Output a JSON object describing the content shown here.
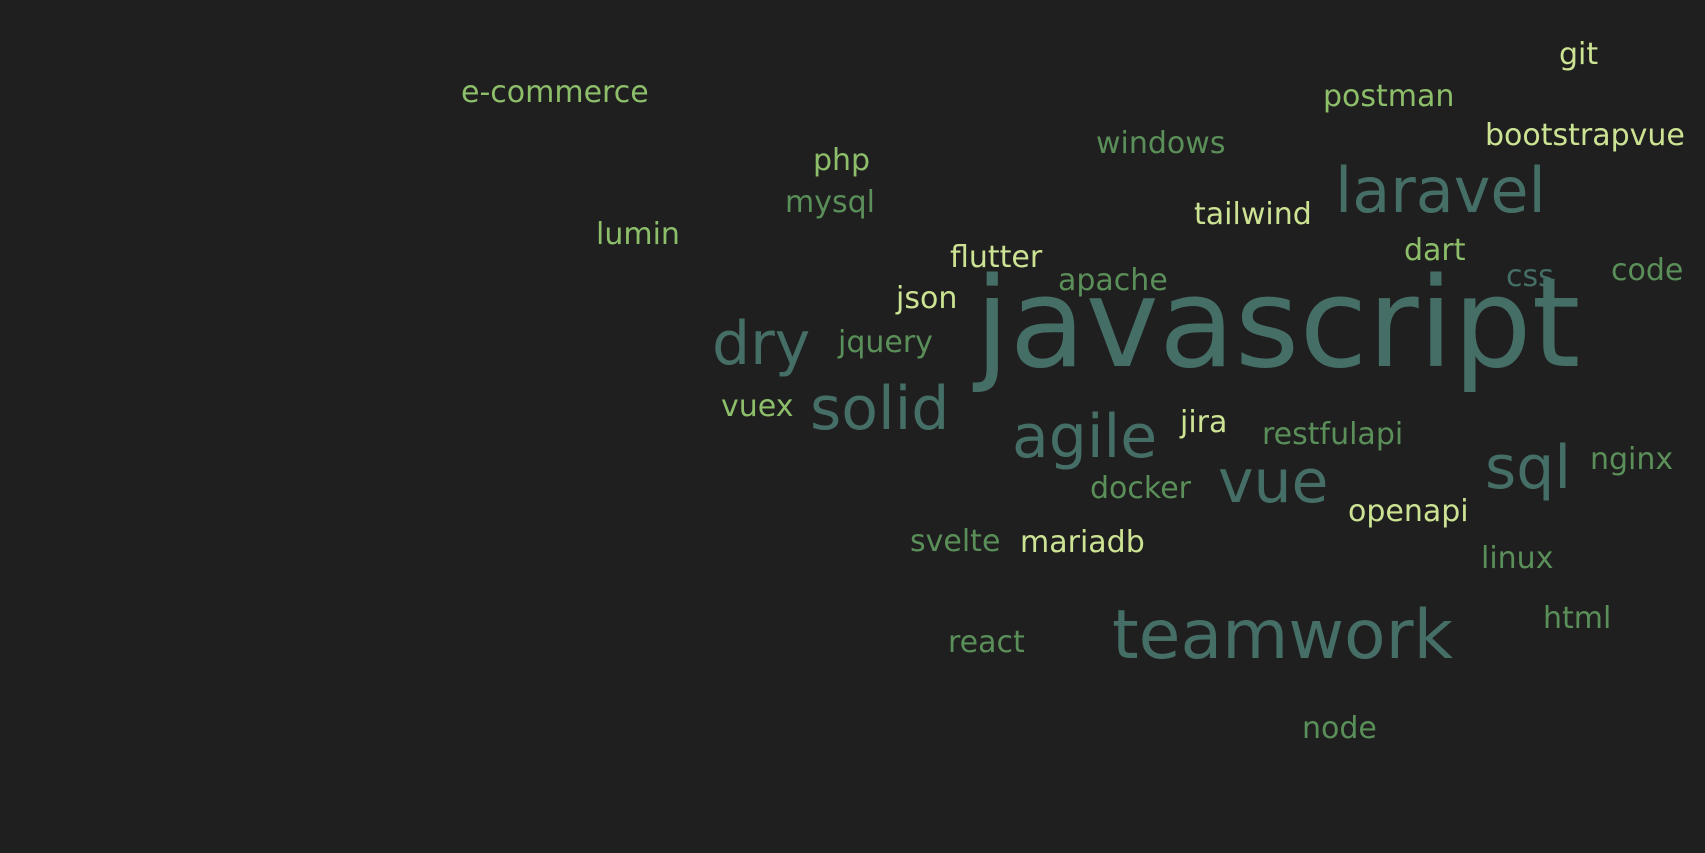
{
  "word_cloud": {
    "palette": {
      "c1": "#456f66",
      "c2": "#5a8f59",
      "c3": "#8dbe6a",
      "c4": "#cde394"
    },
    "words": [
      {
        "text": "javascript"
      },
      {
        "text": "teamwork"
      },
      {
        "text": "laravel"
      },
      {
        "text": "agile"
      },
      {
        "text": "solid"
      },
      {
        "text": "dry"
      },
      {
        "text": "vue"
      },
      {
        "text": "sql"
      },
      {
        "text": "e-commerce"
      },
      {
        "text": "git"
      },
      {
        "text": "postman"
      },
      {
        "text": "bootstrapvue"
      },
      {
        "text": "windows"
      },
      {
        "text": "php"
      },
      {
        "text": "mysql"
      },
      {
        "text": "tailwind"
      },
      {
        "text": "lumin"
      },
      {
        "text": "flutter"
      },
      {
        "text": "dart"
      },
      {
        "text": "code"
      },
      {
        "text": "css"
      },
      {
        "text": "apache"
      },
      {
        "text": "json"
      },
      {
        "text": "jquery"
      },
      {
        "text": "vuex"
      },
      {
        "text": "jira"
      },
      {
        "text": "restfulapi"
      },
      {
        "text": "nginx"
      },
      {
        "text": "docker"
      },
      {
        "text": "openapi"
      },
      {
        "text": "svelte"
      },
      {
        "text": "mariadb"
      },
      {
        "text": "linux"
      },
      {
        "text": "html"
      },
      {
        "text": "react"
      },
      {
        "text": "node"
      }
    ]
  }
}
